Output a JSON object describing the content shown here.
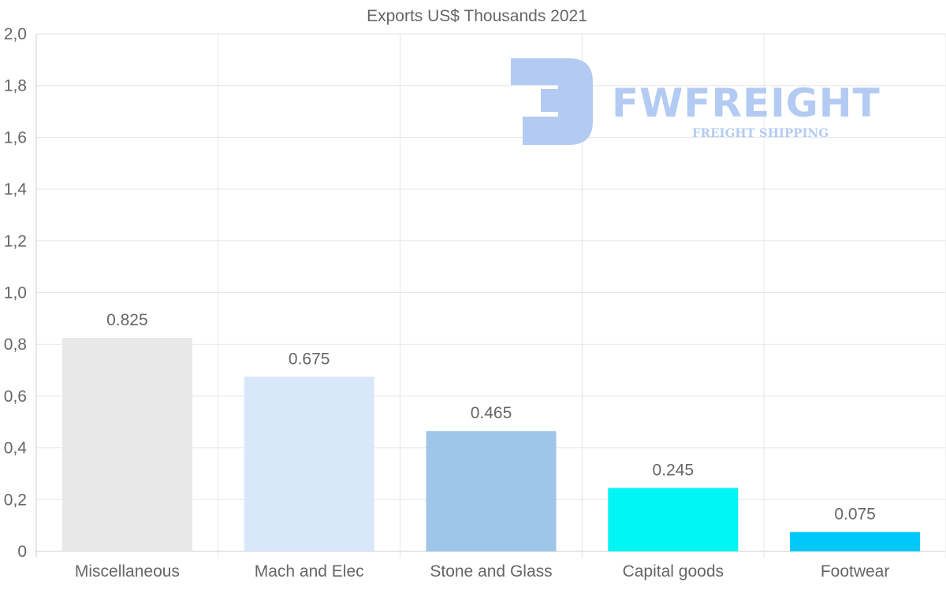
{
  "chart_data": {
    "type": "bar",
    "title": "Exports US$ Thousands 2021",
    "categories": [
      "Miscellaneous",
      "Mach and Elec",
      "Stone and Glass",
      "Capital goods",
      "Footwear"
    ],
    "values": [
      0.825,
      0.675,
      0.465,
      0.245,
      0.075
    ],
    "value_labels": [
      "0.825",
      "0.675",
      "0.465",
      "0.245",
      "0.075"
    ],
    "colors": [
      "#e8e8e8",
      "#d8e8fa",
      "#9ec6e8",
      "#00f5f5",
      "#00c8f8"
    ],
    "ylim": [
      0,
      2.0
    ],
    "yticks": [
      0,
      0.2,
      0.4,
      0.6,
      0.8,
      1.0,
      1.2,
      1.4,
      1.6,
      1.8,
      2.0
    ],
    "ytick_labels": [
      "0",
      "0,2",
      "0,4",
      "0,6",
      "0,8",
      "1,0",
      "1,2",
      "1,4",
      "1,6",
      "1,8",
      "2,0"
    ],
    "xlabel": "",
    "ylabel": "",
    "grid": true
  },
  "watermark": {
    "name": "FWFREIGHT",
    "tagline": "FREIGHT SHIPPING",
    "color": "#b3cbf3"
  }
}
